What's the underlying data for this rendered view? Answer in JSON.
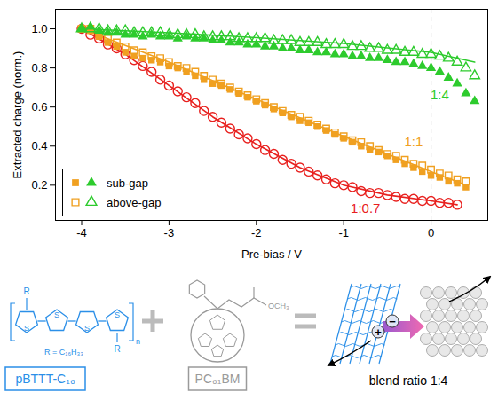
{
  "chart_data": {
    "type": "scatter",
    "xlabel": "Pre-bias / V",
    "ylabel": "Extracted charge (norm.)",
    "xlim": [
      -4.3,
      0.65
    ],
    "xticks": [
      -4,
      -3,
      -2,
      -1,
      0
    ],
    "ylim": [
      0.02,
      1.1
    ],
    "yticks": [
      0.2,
      0.4,
      0.6,
      0.8,
      {
        "value": 1,
        "label": "1.0"
      }
    ],
    "vline": 0,
    "legend": "bottom-left",
    "series": [
      {
        "type": "line",
        "color": "#e8201e",
        "x": [
          -4,
          -3.5,
          -3,
          -2.5,
          -2,
          -1.5,
          -1,
          -0.5,
          0,
          0.3
        ],
        "values": [
          1.0,
          0.87,
          0.71,
          0.55,
          0.41,
          0.29,
          0.2,
          0.15,
          0.12,
          0.1
        ]
      },
      {
        "type": "line",
        "color": "#f0a020",
        "x": [
          -4,
          -3,
          -2,
          -1,
          0,
          0.4
        ],
        "values": [
          1.0,
          0.83,
          0.64,
          0.45,
          0.27,
          0.2
        ]
      },
      {
        "type": "line",
        "color": "#2dcb2d",
        "x": [
          -4,
          -3,
          -2,
          -1,
          0,
          0.5
        ],
        "values": [
          1.0,
          0.98,
          0.955,
          0.925,
          0.88,
          0.83
        ]
      },
      {
        "type": "scatter",
        "marker": "open-circle",
        "color": "#e8201e",
        "x": [
          -4,
          -3.9,
          -3.8,
          -3.7,
          -3.6,
          -3.5,
          -3.4,
          -3.3,
          -3.2,
          -3.1,
          -3,
          -2.9,
          -2.8,
          -2.7,
          -2.6,
          -2.5,
          -2.4,
          -2.3,
          -2.2,
          -2.1,
          -2,
          -1.9,
          -1.8,
          -1.7,
          -1.6,
          -1.5,
          -1.4,
          -1.3,
          -1.2,
          -1.1,
          -1,
          -0.9,
          -0.8,
          -0.7,
          -0.6,
          -0.5,
          -0.4,
          -0.3,
          -0.2,
          -0.1,
          0,
          0.1,
          0.2,
          0.3
        ],
        "values": [
          1.0,
          0.97,
          0.95,
          0.92,
          0.9,
          0.87,
          0.84,
          0.81,
          0.78,
          0.74,
          0.71,
          0.68,
          0.65,
          0.62,
          0.58,
          0.55,
          0.52,
          0.49,
          0.46,
          0.44,
          0.41,
          0.38,
          0.36,
          0.33,
          0.31,
          0.29,
          0.27,
          0.25,
          0.23,
          0.21,
          0.2,
          0.19,
          0.17,
          0.16,
          0.16,
          0.15,
          0.14,
          0.13,
          0.13,
          0.12,
          0.12,
          0.11,
          0.11,
          0.1
        ]
      },
      {
        "type": "scatter",
        "name": "sub-gap",
        "marker": "square",
        "color": "#f0a020",
        "x": [
          -4,
          -3.9,
          -3.8,
          -3.7,
          -3.6,
          -3.5,
          -3.4,
          -3.3,
          -3.2,
          -3.1,
          -3,
          -2.9,
          -2.8,
          -2.7,
          -2.6,
          -2.5,
          -2.4,
          -2.3,
          -2.2,
          -2.1,
          -2,
          -1.9,
          -1.8,
          -1.7,
          -1.6,
          -1.5,
          -1.4,
          -1.3,
          -1.2,
          -1.1,
          -1,
          -0.9,
          -0.8,
          -0.7,
          -0.6,
          -0.5,
          -0.4,
          -0.3,
          -0.2,
          -0.1,
          0,
          0.1,
          0.2,
          0.3,
          0.4
        ],
        "values": [
          1.0,
          0.99,
          0.96,
          0.93,
          0.91,
          0.88,
          0.86,
          0.85,
          0.84,
          0.83,
          0.81,
          0.8,
          0.78,
          0.76,
          0.74,
          0.72,
          0.71,
          0.69,
          0.67,
          0.65,
          0.63,
          0.61,
          0.59,
          0.57,
          0.55,
          0.53,
          0.52,
          0.5,
          0.48,
          0.46,
          0.44,
          0.42,
          0.4,
          0.38,
          0.37,
          0.35,
          0.33,
          0.31,
          0.29,
          0.27,
          0.25,
          0.24,
          0.22,
          0.21,
          0.19
        ]
      },
      {
        "type": "scatter",
        "name": "above-gap",
        "marker": "open-square",
        "color": "#f0a020",
        "x": [
          -4,
          -3.9,
          -3.8,
          -3.7,
          -3.6,
          -3.5,
          -3.4,
          -3.3,
          -3.2,
          -3.1,
          -3,
          -2.9,
          -2.8,
          -2.7,
          -2.6,
          -2.5,
          -2.4,
          -2.3,
          -2.2,
          -2.1,
          -2,
          -1.9,
          -1.8,
          -1.7,
          -1.6,
          -1.5,
          -1.4,
          -1.3,
          -1.2,
          -1.1,
          -1,
          -0.9,
          -0.8,
          -0.7,
          -0.6,
          -0.5,
          -0.4,
          -0.3,
          -0.2,
          -0.1,
          0,
          0.1,
          0.2,
          0.3,
          0.4
        ],
        "values": [
          1.0,
          1.0,
          0.97,
          0.95,
          0.93,
          0.91,
          0.89,
          0.88,
          0.86,
          0.85,
          0.83,
          0.81,
          0.8,
          0.78,
          0.76,
          0.74,
          0.72,
          0.7,
          0.68,
          0.66,
          0.64,
          0.62,
          0.6,
          0.58,
          0.56,
          0.55,
          0.53,
          0.51,
          0.49,
          0.47,
          0.45,
          0.43,
          0.42,
          0.4,
          0.38,
          0.36,
          0.35,
          0.33,
          0.31,
          0.3,
          0.28,
          0.26,
          0.25,
          0.23,
          0.22
        ]
      },
      {
        "type": "scatter",
        "name": "sub-gap",
        "marker": "triangle",
        "color": "#2dcb2d",
        "x": [
          -4,
          -3.9,
          -3.8,
          -3.7,
          -3.6,
          -3.5,
          -3.4,
          -3.3,
          -3.2,
          -3.1,
          -3,
          -2.9,
          -2.8,
          -2.7,
          -2.6,
          -2.5,
          -2.4,
          -2.3,
          -2.2,
          -2.1,
          -2,
          -1.9,
          -1.8,
          -1.7,
          -1.6,
          -1.5,
          -1.4,
          -1.3,
          -1.2,
          -1.1,
          -1,
          -0.9,
          -0.8,
          -0.7,
          -0.6,
          -0.5,
          -0.4,
          -0.3,
          -0.2,
          -0.1,
          0,
          0.1,
          0.2,
          0.3,
          0.4,
          0.5
        ],
        "values": [
          1.0,
          1.01,
          0.99,
          0.98,
          0.98,
          0.97,
          0.97,
          0.96,
          0.97,
          0.96,
          0.96,
          0.95,
          0.96,
          0.95,
          0.95,
          0.94,
          0.94,
          0.93,
          0.93,
          0.92,
          0.92,
          0.91,
          0.91,
          0.9,
          0.9,
          0.89,
          0.89,
          0.88,
          0.88,
          0.87,
          0.87,
          0.86,
          0.86,
          0.85,
          0.85,
          0.84,
          0.83,
          0.83,
          0.82,
          0.81,
          0.8,
          0.78,
          0.75,
          0.72,
          0.67,
          0.63
        ]
      },
      {
        "type": "scatter",
        "name": "above-gap",
        "marker": "open-triangle",
        "color": "#2dcb2d",
        "x": [
          -4,
          -3.9,
          -3.8,
          -3.7,
          -3.6,
          -3.5,
          -3.4,
          -3.3,
          -3.2,
          -3.1,
          -3,
          -2.9,
          -2.8,
          -2.7,
          -2.6,
          -2.5,
          -2.4,
          -2.3,
          -2.2,
          -2.1,
          -2,
          -1.9,
          -1.8,
          -1.7,
          -1.6,
          -1.5,
          -1.4,
          -1.3,
          -1.2,
          -1.1,
          -1,
          -0.9,
          -0.8,
          -0.7,
          -0.6,
          -0.5,
          -0.4,
          -0.3,
          -0.2,
          -0.1,
          0,
          0.1,
          0.2,
          0.3,
          0.4,
          0.5
        ],
        "values": [
          1.0,
          1.0,
          1.0,
          0.99,
          0.99,
          0.99,
          0.98,
          0.98,
          0.98,
          0.98,
          0.97,
          0.97,
          0.97,
          0.97,
          0.96,
          0.96,
          0.96,
          0.96,
          0.95,
          0.95,
          0.95,
          0.95,
          0.94,
          0.94,
          0.94,
          0.93,
          0.93,
          0.93,
          0.92,
          0.92,
          0.92,
          0.91,
          0.91,
          0.9,
          0.9,
          0.89,
          0.89,
          0.88,
          0.88,
          0.87,
          0.87,
          0.86,
          0.85,
          0.83,
          0.8,
          0.76
        ]
      }
    ],
    "annotations": [
      {
        "text": "1:4",
        "x": 0.1,
        "y": 0.66,
        "color": "#2dcb2d"
      },
      {
        "text": "1:1",
        "x": -0.2,
        "y": 0.42,
        "color": "#f0a020"
      },
      {
        "text": "1:0.7",
        "x": -0.75,
        "y": 0.08,
        "color": "#e8201e"
      }
    ]
  },
  "diagram": {
    "donor": {
      "name": "pBTTT-C₁₆",
      "ring_atom": "S",
      "side_chain": "R",
      "repeat": "n",
      "substituent": "R = C₁₆H₃₃",
      "color": "#2b8fe8"
    },
    "acceptor": {
      "name": "PC₆₁BM",
      "group": "OCH₃",
      "color": "#9a9a9a"
    },
    "blend": {
      "label": "blend ratio 1:4",
      "charges": [
        "+",
        "−"
      ]
    }
  }
}
